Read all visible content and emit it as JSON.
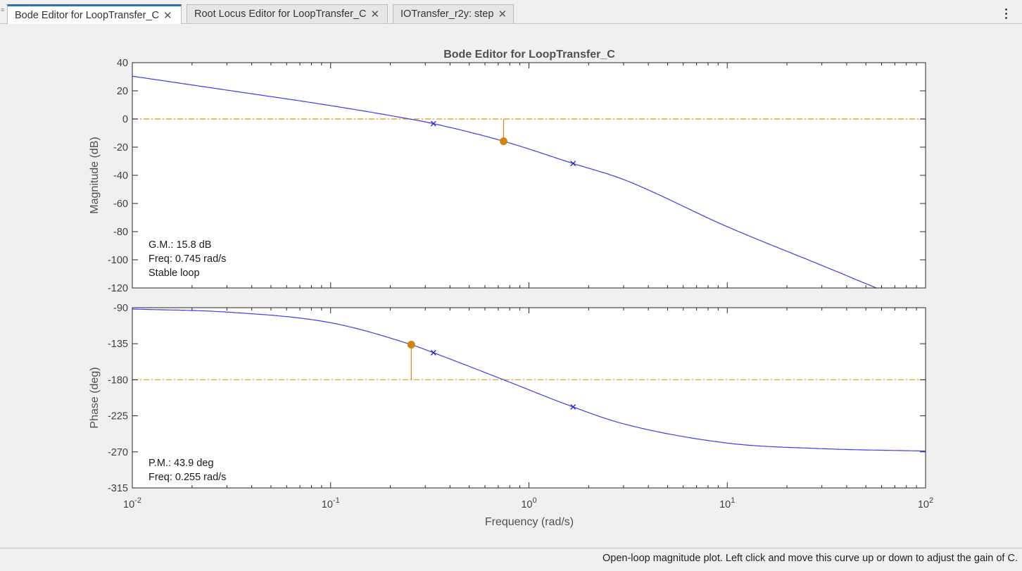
{
  "tabs": [
    {
      "label": "Bode Editor for LoopTransfer_C",
      "active": true
    },
    {
      "label": "Root Locus Editor for LoopTransfer_C",
      "active": false
    },
    {
      "label": "IOTransfer_r2y: step",
      "active": false
    }
  ],
  "status_text": "Open-loop magnitude plot. Left click and move this curve up or down to adjust the gain of C.",
  "colors": {
    "curve": "#3c3cf0",
    "margin": "#e8a636",
    "marker": "#d4840c",
    "pole": "#2020c8"
  },
  "chart_data": {
    "type": "line",
    "title": "Bode Editor for LoopTransfer_C",
    "xlabel": "Frequency (rad/s)",
    "x_scale": "log",
    "xlim": [
      0.01,
      100
    ],
    "x_tick_labels": [
      {
        "base": "10",
        "exp": "-2"
      },
      {
        "base": "10",
        "exp": "-1"
      },
      {
        "base": "10",
        "exp": "0"
      },
      {
        "base": "10",
        "exp": "1"
      },
      {
        "base": "10",
        "exp": "2"
      }
    ],
    "magnitude": {
      "ylabel": "Magnitude (dB)",
      "ylim": [
        -120,
        40
      ],
      "y_ticks": [
        "40",
        "20",
        "0",
        "-20",
        "-40",
        "-60",
        "-80",
        "-100",
        "-120"
      ],
      "reference_line_db": 0,
      "series": [
        {
          "x": [
            0.01,
            0.03,
            0.1,
            0.25,
            0.33,
            0.745,
            1.67,
            3,
            10,
            30,
            56.5
          ],
          "y": [
            30.4,
            20.5,
            9.5,
            0,
            -3.3,
            -15.8,
            -31.6,
            -43,
            -76.5,
            -104,
            -120
          ]
        }
      ],
      "poles": [
        {
          "w": 0.33,
          "db": -3.3
        },
        {
          "w": 1.67,
          "db": -31.6
        }
      ],
      "gain_margin_marker": {
        "w": 0.745,
        "db": -15.8
      },
      "annotations": [
        "G.M.: 15.8 dB",
        "Freq: 0.745 rad/s",
        "Stable loop"
      ]
    },
    "phase": {
      "ylabel": "Phase (deg)",
      "ylim": [
        -315,
        -90
      ],
      "y_ticks": [
        "-90",
        "-135",
        "-180",
        "-225",
        "-270",
        "-315"
      ],
      "reference_line_deg": -180,
      "series": [
        {
          "x": [
            0.01,
            0.03,
            0.1,
            0.255,
            0.33,
            0.745,
            1.67,
            3,
            10,
            30,
            100
          ],
          "y": [
            -91.7,
            -95.5,
            -108.8,
            -136.1,
            -146.2,
            -180,
            -213.9,
            -235,
            -259,
            -266,
            -269
          ]
        }
      ],
      "poles": [
        {
          "w": 0.33,
          "deg": -146.2
        },
        {
          "w": 1.67,
          "deg": -213.9
        }
      ],
      "phase_margin_marker": {
        "w": 0.255,
        "deg": -136.1
      },
      "annotations": [
        "P.M.: 43.9 deg",
        "Freq: 0.255 rad/s"
      ]
    }
  }
}
